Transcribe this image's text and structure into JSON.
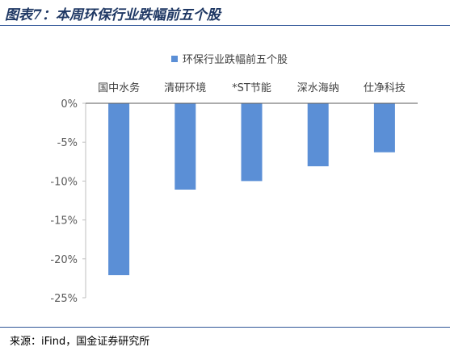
{
  "title": "图表7：本周环保行业跌幅前五个股",
  "source": "来源：iFind，国金证券研究所",
  "chart_data": {
    "type": "bar",
    "categories": [
      "国中水务",
      "清研环境",
      "*ST节能",
      "深水海纳",
      "仕净科技"
    ],
    "series": [
      {
        "name": "环保行业跌幅前五个股",
        "values": [
          -22.1,
          -11.1,
          -10.0,
          -8.1,
          -6.3
        ],
        "color": "#5b8fd6"
      }
    ],
    "ylim": [
      -25,
      0
    ],
    "yticks": [
      0,
      -5,
      -10,
      -15,
      -20,
      -25
    ],
    "ytick_labels": [
      "0%",
      "-5%",
      "-10%",
      "-15%",
      "-20%",
      "-25%"
    ],
    "legend_position": "top-center",
    "grid": false,
    "category_labels_position": "top"
  }
}
